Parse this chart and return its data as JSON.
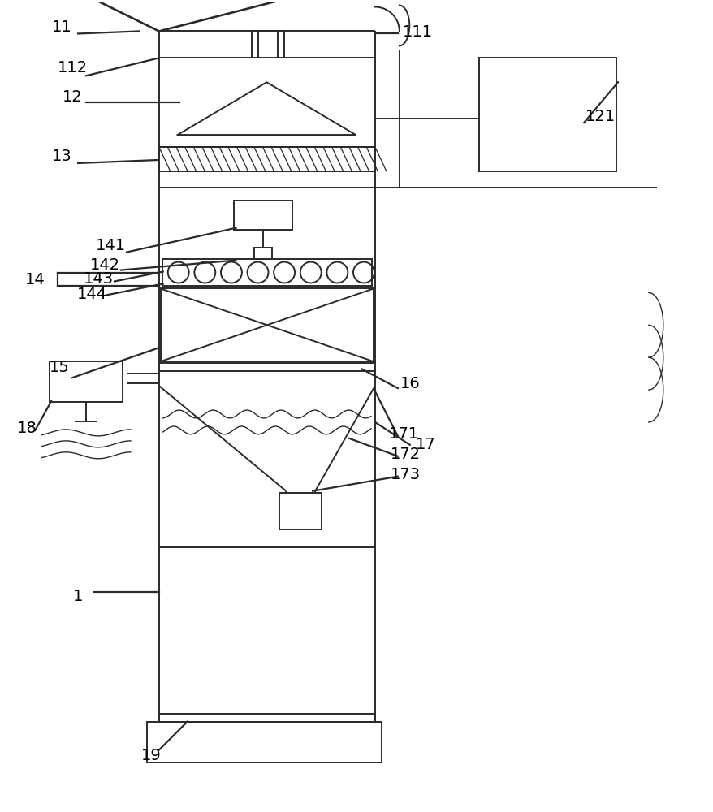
{
  "bg_color": "#ffffff",
  "line_color": "#2a2a2a",
  "lw": 1.4,
  "fig_w": 8.79,
  "fig_h": 10.0
}
